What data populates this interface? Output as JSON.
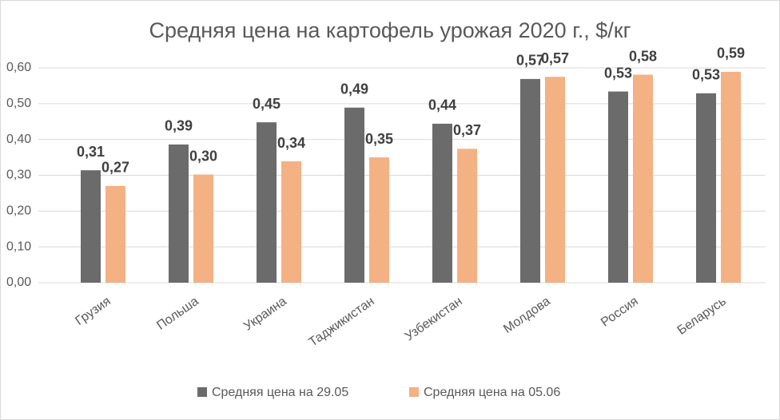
{
  "chart_data": {
    "type": "bar",
    "title": "Средняя цена на картофель урожая 2020 г., $/кг",
    "categories": [
      "Грузия",
      "Польша",
      "Украина",
      "Таджикистан",
      "Узбекистан",
      "Молдова",
      "Россия",
      "Беларусь"
    ],
    "series": [
      {
        "name": "Средняя цена на 29.05",
        "color": "#6b6b6b",
        "values": [
          0.314,
          0.386,
          0.448,
          0.489,
          0.444,
          0.569,
          0.534,
          0.529
        ],
        "value_labels": [
          "0,31",
          "0,39",
          "0,45",
          "0,49",
          "0,44",
          "0,57",
          "0,53",
          "0,53"
        ]
      },
      {
        "name": "Средняя цена на 05.06",
        "color": "#f4b183",
        "values": [
          0.27,
          0.302,
          0.339,
          0.35,
          0.374,
          0.575,
          0.581,
          0.589
        ],
        "value_labels": [
          "0,27",
          "0,30",
          "0,34",
          "0,35",
          "0,37",
          "0,57",
          "0,58",
          "0,59"
        ]
      }
    ],
    "ylim": [
      0,
      0.6
    ],
    "yticks": [
      {
        "value": 0,
        "label": "0,00"
      },
      {
        "value": 0.1,
        "label": "0,10"
      },
      {
        "value": 0.2,
        "label": "0,20"
      },
      {
        "value": 0.3,
        "label": "0,30"
      },
      {
        "value": 0.4,
        "label": "0,40"
      },
      {
        "value": 0.5,
        "label": "0,50"
      },
      {
        "value": 0.6,
        "label": "0,60"
      }
    ],
    "grid": true,
    "legend": "bottom"
  }
}
